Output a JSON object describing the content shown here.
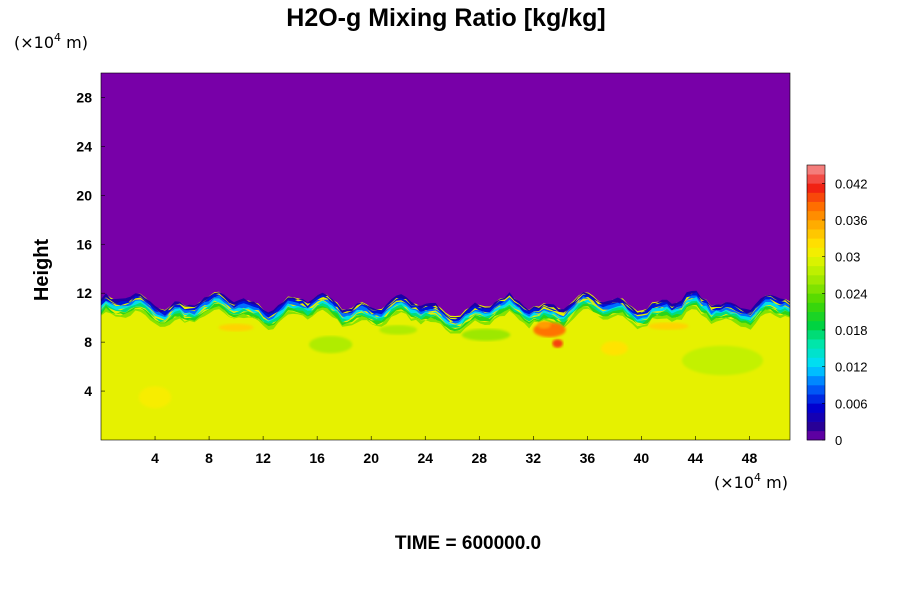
{
  "chart_data": {
    "type": "heatmap",
    "title": "H2O-g Mixing Ratio [kg/kg]",
    "xlabel": "",
    "ylabel": "Height",
    "x_unit": {
      "prefix": "(×10",
      "exponent": "4",
      "suffix": " m)"
    },
    "y_unit": {
      "prefix": "(×10",
      "exponent": "4",
      "suffix": " m)"
    },
    "xlim": [
      0,
      51
    ],
    "ylim": [
      0,
      30
    ],
    "x_ticks": [
      4,
      8,
      12,
      16,
      20,
      24,
      28,
      32,
      36,
      40,
      44,
      48
    ],
    "y_ticks": [
      4,
      8,
      12,
      16,
      20,
      24,
      28
    ],
    "colorbar": {
      "min": 0,
      "max": 0.045,
      "ticks": [
        0,
        0.006,
        0.012,
        0.018,
        0.024,
        0.03,
        0.036,
        0.042
      ],
      "tick_labels": [
        "0",
        "0.006",
        "0.012",
        "0.018",
        "0.024",
        "0.03",
        "0.036",
        "0.042"
      ]
    },
    "field_description_values": {
      "upper_region_value": 0,
      "lower_region_value": 0.03,
      "transition_height_approx": 10.5,
      "local_maximum_approx": 0.04
    },
    "annotation": "TIME = 600000.0"
  },
  "colors": {
    "upper": "#7800a8",
    "lower": "#dcff00",
    "background": "#ffffff"
  }
}
